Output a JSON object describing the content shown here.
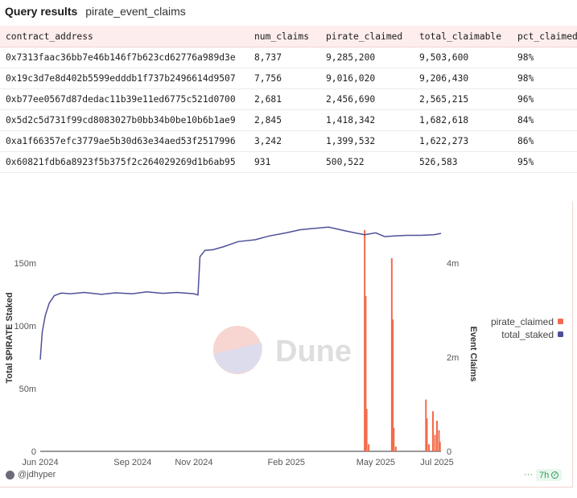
{
  "header": {
    "title": "Query results",
    "query_name": "pirate_event_claims"
  },
  "table": {
    "columns": [
      "contract_address",
      "num_claims",
      "pirate_claimed",
      "total_claimable",
      "pct_claimed"
    ],
    "rows": [
      [
        "0x7313faac36bb7e46b146f7b623cd62776a989d3e",
        "8,737",
        "9,285,200",
        "9,503,600",
        "98%"
      ],
      [
        "0x19c3d7e8d402b5599edddb1f737b2496614d9507",
        "7,756",
        "9,016,020",
        "9,206,430",
        "98%"
      ],
      [
        "0xb77ee0567d87dedac11b39e11ed6775c521d0700",
        "2,681",
        "2,456,690",
        "2,565,215",
        "96%"
      ],
      [
        "0x5d2c5d731f99cd8083027b0bb34b0be10b6b1ae9",
        "2,845",
        "1,418,342",
        "1,682,618",
        "84%"
      ],
      [
        "0xa1f66357efc3779ae5b30d63e34aed53f2517996",
        "3,242",
        "1,399,532",
        "1,622,273",
        "86%"
      ],
      [
        "0x60821fdb6a8923f5b375f2c264029269d1b6ab95",
        "931",
        "500,522",
        "526,583",
        "95%"
      ]
    ]
  },
  "chart_data": {
    "type": "line",
    "x_ticks": [
      "Jun 2024",
      "Sep 2024",
      "Nov 2024",
      "Feb 2025",
      "May 2025",
      "Jul 2025"
    ],
    "x_tick_dates": [
      "2024-06-01",
      "2024-09-01",
      "2024-11-01",
      "2025-02-01",
      "2025-05-01",
      "2025-07-01"
    ],
    "x_range": [
      "2024-06-01",
      "2025-07-05"
    ],
    "y_left": {
      "label": "Total $PIRATE Staked",
      "ticks": [
        "0",
        "50m",
        "100m",
        "150m"
      ],
      "tick_values": [
        0,
        50000000,
        100000000,
        150000000
      ],
      "range": [
        0,
        180000000
      ]
    },
    "y_right": {
      "label": "Event Claims",
      "ticks": [
        "0",
        "2m",
        "4m"
      ],
      "tick_values": [
        0,
        2000000,
        4000000
      ],
      "range": [
        0,
        4800000
      ]
    },
    "series": [
      {
        "name": "total_staked",
        "axis": "left",
        "color": "#4f4f99",
        "points": [
          [
            "2024-06-01",
            73000000
          ],
          [
            "2024-06-03",
            95000000
          ],
          [
            "2024-06-06",
            108000000
          ],
          [
            "2024-06-10",
            118000000
          ],
          [
            "2024-06-15",
            124000000
          ],
          [
            "2024-06-22",
            126000000
          ],
          [
            "2024-07-01",
            125500000
          ],
          [
            "2024-07-15",
            126500000
          ],
          [
            "2024-08-01",
            125000000
          ],
          [
            "2024-08-15",
            126200000
          ],
          [
            "2024-09-01",
            125500000
          ],
          [
            "2024-09-15",
            127000000
          ],
          [
            "2024-10-01",
            125800000
          ],
          [
            "2024-10-15",
            126500000
          ],
          [
            "2024-11-01",
            125500000
          ],
          [
            "2024-11-05",
            124500000
          ],
          [
            "2024-11-07",
            155000000
          ],
          [
            "2024-11-12",
            160000000
          ],
          [
            "2024-11-20",
            160500000
          ],
          [
            "2024-12-01",
            163000000
          ],
          [
            "2024-12-15",
            167000000
          ],
          [
            "2025-01-01",
            168500000
          ],
          [
            "2025-01-15",
            171500000
          ],
          [
            "2025-02-01",
            174000000
          ],
          [
            "2025-02-15",
            176500000
          ],
          [
            "2025-03-01",
            177500000
          ],
          [
            "2025-03-15",
            178500000
          ],
          [
            "2025-04-01",
            175500000
          ],
          [
            "2025-04-10",
            174000000
          ],
          [
            "2025-04-20",
            172500000
          ],
          [
            "2025-05-01",
            174000000
          ],
          [
            "2025-05-10",
            171000000
          ],
          [
            "2025-05-20",
            171500000
          ],
          [
            "2025-06-01",
            172000000
          ],
          [
            "2025-06-15",
            172000000
          ],
          [
            "2025-06-28",
            172500000
          ],
          [
            "2025-07-05",
            173500000
          ]
        ]
      },
      {
        "name": "pirate_claimed",
        "axis": "right",
        "color": "#f26b4a",
        "spikes": [
          [
            "2025-04-20",
            4700000
          ],
          [
            "2025-04-21",
            3300000
          ],
          [
            "2025-04-22",
            900000
          ],
          [
            "2025-04-24",
            150000
          ],
          [
            "2025-05-17",
            4100000
          ],
          [
            "2025-05-18",
            2800000
          ],
          [
            "2025-05-19",
            500000
          ],
          [
            "2025-05-21",
            100000
          ],
          [
            "2025-06-20",
            1100000
          ],
          [
            "2025-06-21",
            700000
          ],
          [
            "2025-06-23",
            150000
          ],
          [
            "2025-06-27",
            850000
          ],
          [
            "2025-06-29",
            350000
          ],
          [
            "2025-07-01",
            650000
          ],
          [
            "2025-07-03",
            450000
          ],
          [
            "2025-07-04",
            200000
          ]
        ]
      }
    ],
    "legend": {
      "position": "right"
    },
    "watermark": "Dune"
  },
  "footer": {
    "user": "@jdhyper",
    "refresh": "7h"
  }
}
